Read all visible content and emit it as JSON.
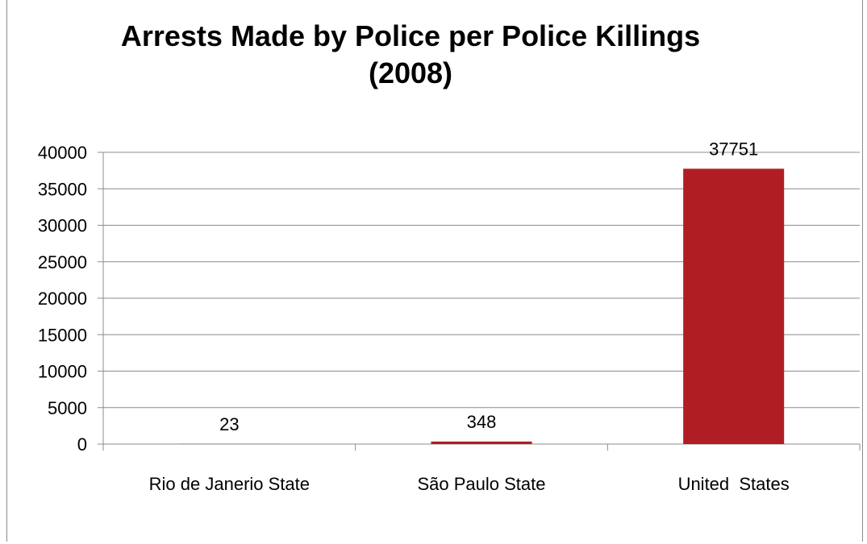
{
  "chart_data": {
    "type": "bar",
    "title": "Arrests Made by Police per Police Killings\n(2008)",
    "categories": [
      "Rio de Janerio State",
      "São Paulo State",
      "United  States"
    ],
    "values": [
      23,
      348,
      37751
    ],
    "data_labels": [
      "23",
      "348",
      "37751"
    ],
    "ylim": [
      0,
      40000
    ],
    "yticks": [
      0,
      5000,
      10000,
      15000,
      20000,
      25000,
      30000,
      35000,
      40000
    ],
    "grid": true,
    "legend": "none",
    "bar_color": "#b01e24"
  }
}
